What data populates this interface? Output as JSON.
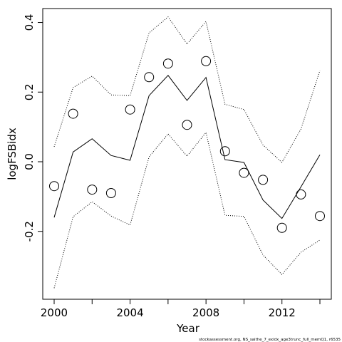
{
  "chart_data": {
    "type": "line",
    "xlabel": "Year",
    "ylabel": "logFSBidx",
    "xlim": [
      1999.4,
      2014.6
    ],
    "ylim": [
      -0.395,
      0.44
    ],
    "xticks": [
      2000,
      2004,
      2008,
      2012
    ],
    "xtick_labels": [
      "2000",
      "2004",
      "2008",
      "2012"
    ],
    "yticks": [
      -0.2,
      0.0,
      0.2,
      0.4
    ],
    "ytick_labels": [
      "-0.2",
      "0.0",
      "0.2",
      "0.4"
    ],
    "x": [
      2000,
      2001,
      2002,
      2003,
      2004,
      2005,
      2006,
      2007,
      2008,
      2009,
      2010,
      2011,
      2012,
      2013,
      2014
    ],
    "observed": [
      -0.07,
      0.138,
      -0.08,
      -0.09,
      0.15,
      0.243,
      0.282,
      0.106,
      0.289,
      0.03,
      -0.032,
      -0.052,
      -0.19,
      -0.094,
      -0.156
    ],
    "fit": [
      -0.16,
      0.028,
      0.066,
      0.018,
      0.004,
      0.19,
      0.248,
      0.176,
      0.242,
      0.006,
      -0.002,
      -0.11,
      -0.163,
      -0.072,
      0.02
    ],
    "upper": [
      0.043,
      0.213,
      0.246,
      0.192,
      0.19,
      0.37,
      0.416,
      0.338,
      0.403,
      0.165,
      0.15,
      0.048,
      -0.002,
      0.094,
      0.262
    ],
    "lower": [
      -0.363,
      -0.158,
      -0.115,
      -0.156,
      -0.182,
      0.014,
      0.08,
      0.016,
      0.084,
      -0.154,
      -0.157,
      -0.268,
      -0.324,
      -0.26,
      -0.225
    ],
    "grid": false,
    "footnote": "stockassessment.org, NS_saithe_7_exidx_age3trunc_full_memQ1, r6535"
  }
}
